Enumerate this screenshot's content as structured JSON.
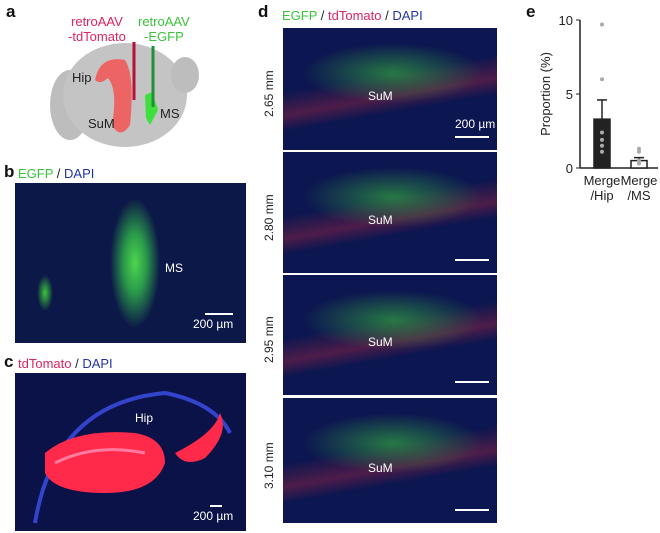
{
  "panels": {
    "a": {
      "label": "a",
      "inj_red": "retroAAV",
      "inj_red2": "-tdTomato",
      "inj_green": "retroAAV",
      "inj_green2": "-EGFP",
      "regions": [
        "Hip",
        "SuM",
        "MS"
      ]
    },
    "b": {
      "label": "b",
      "title_green": "EGFP",
      "title_sep": " / ",
      "title_blue": "DAPI",
      "region": "MS",
      "scalebar": "200 µm"
    },
    "c": {
      "label": "c",
      "title_red": "tdTomato",
      "title_sep": " / ",
      "title_blue": "DAPI",
      "region": "Hip",
      "scalebar": "200 µm"
    },
    "d": {
      "label": "d",
      "title_green": "EGFP",
      "sep1": " / ",
      "title_red": "tdTomato",
      "sep2": " / ",
      "title_blue": "DAPI",
      "sections": [
        {
          "depth": "2.65 mm",
          "region": "SuM",
          "scalebar": "200 µm"
        },
        {
          "depth": "2.80 mm",
          "region": "SuM"
        },
        {
          "depth": "2.95 mm",
          "region": "SuM"
        },
        {
          "depth": "3.10 mm",
          "region": "SuM"
        }
      ]
    },
    "e": {
      "label": "e"
    }
  },
  "colors": {
    "egfp": "#3bc43b",
    "tdtomato": "#e0245e",
    "dapi": "#2233aa"
  },
  "chart_data": {
    "type": "bar",
    "ylabel": "Proportion (%)",
    "ylim": [
      0,
      10
    ],
    "yticks": [
      "0",
      "5",
      "10"
    ],
    "categories": [
      "Merge /Hip",
      "Merge /MS"
    ],
    "cat_line1": [
      "Merge",
      "Merge"
    ],
    "cat_line2": [
      "/Hip",
      "/MS"
    ],
    "values": [
      3.3,
      0.5
    ],
    "errors": [
      1.3,
      0.2
    ],
    "bar_fill": [
      "#222222",
      "#ffffff"
    ],
    "points": [
      [
        9.7,
        6.0,
        2.4,
        1.9,
        1.5,
        1.1
      ],
      [
        1.3,
        1.1,
        0.5,
        0.3
      ]
    ]
  }
}
